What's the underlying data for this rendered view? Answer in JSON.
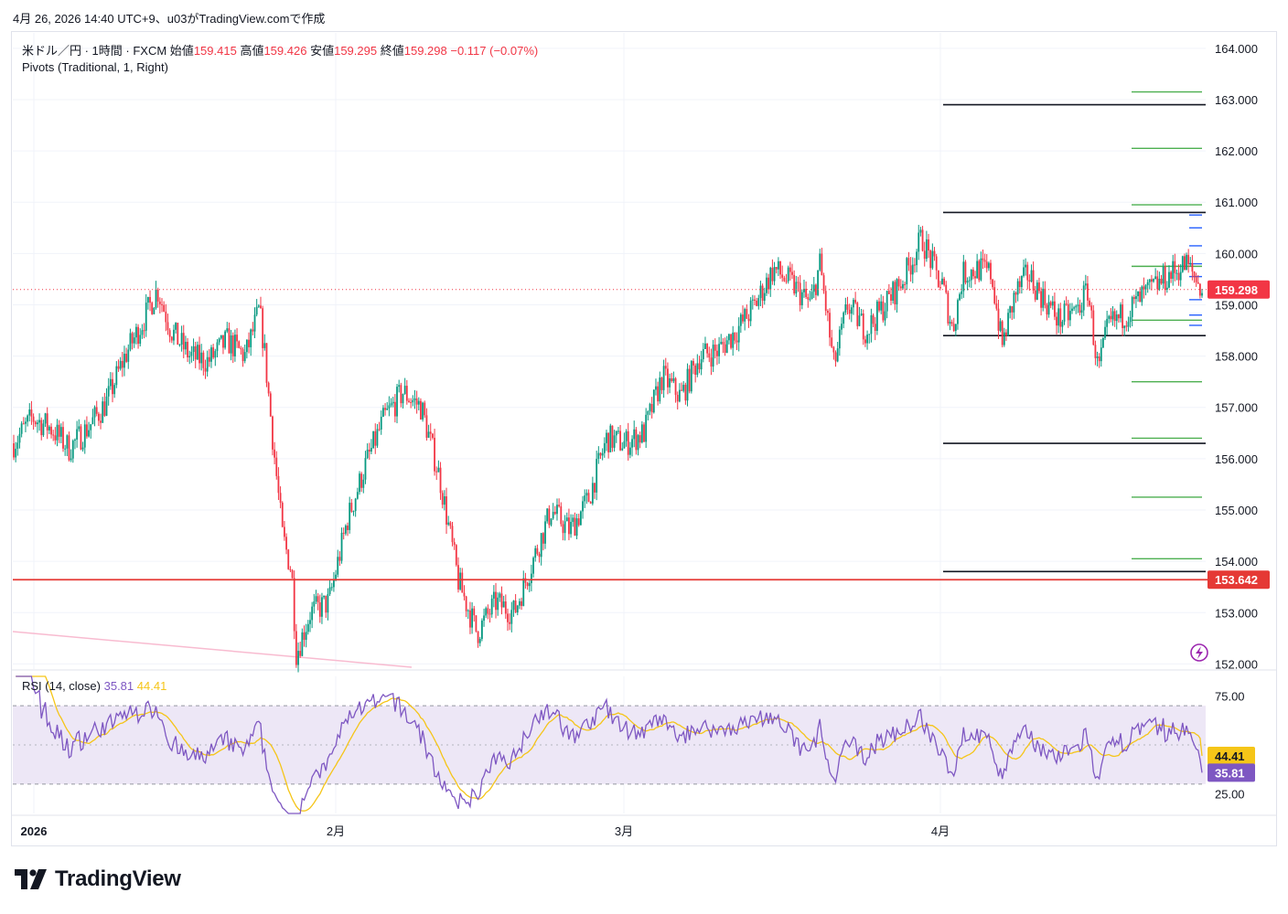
{
  "header": {
    "timestamp_line": "4月 26, 2026 14:40 UTC+9、u03がTradingView.comで作成"
  },
  "legend": {
    "symbol": "米ドル／円 · 1時間 · FXCM",
    "open_label": "始値",
    "open": "159.415",
    "high_label": "高値",
    "high": "159.426",
    "low_label": "安値",
    "low": "159.295",
    "close_label": "終値",
    "close": "159.298",
    "change": "−0.117 (−0.07%)",
    "pivots": "Pivots (Traditional, 1, Right)",
    "rsi_label": "RSI (14, close)",
    "rsi_value": "35.81",
    "rsi_ma_value": "44.41"
  },
  "price_axis": {
    "labels": [
      "164.000",
      "163.000",
      "162.000",
      "161.000",
      "160.000",
      "159.000",
      "158.000",
      "157.000",
      "156.000",
      "155.000",
      "154.000",
      "153.000",
      "152.000"
    ],
    "current_price_badge": "159.298",
    "hline_badge": "153.642"
  },
  "rsi_axis": {
    "labels": [
      "75.00",
      "25.00"
    ],
    "ma_badge": "44.41",
    "rsi_badge": "35.81"
  },
  "time_axis": {
    "labels": [
      "2026",
      "2月",
      "3月",
      "4月"
    ]
  },
  "colors": {
    "up": "#089981",
    "down": "#f23645",
    "hline": "#e53935",
    "pivot_black": "#131722",
    "pivot_green": "#4caf50",
    "rsi": "#7e57c2",
    "rsi_ma": "#f5c518",
    "rsi_band": "#ede7f6"
  },
  "chart_data": {
    "type": "candlestick",
    "symbol": "米ドル／円",
    "timeframe": "1時間",
    "ylim": [
      151.9,
      164.3
    ],
    "anchors": [
      {
        "t": 0.0,
        "p": 156.3
      },
      {
        "t": 0.02,
        "p": 156.8
      },
      {
        "t": 0.04,
        "p": 156.6
      },
      {
        "t": 0.06,
        "p": 156.2
      },
      {
        "t": 0.08,
        "p": 156.6
      },
      {
        "t": 0.1,
        "p": 157.1
      },
      {
        "t": 0.12,
        "p": 158.0
      },
      {
        "t": 0.14,
        "p": 158.7
      },
      {
        "t": 0.155,
        "p": 159.3
      },
      {
        "t": 0.17,
        "p": 158.5
      },
      {
        "t": 0.19,
        "p": 158.0
      },
      {
        "t": 0.21,
        "p": 157.9
      },
      {
        "t": 0.23,
        "p": 158.3
      },
      {
        "t": 0.25,
        "p": 158.0
      },
      {
        "t": 0.265,
        "p": 158.9
      },
      {
        "t": 0.27,
        "p": 158.2
      },
      {
        "t": 0.28,
        "p": 156.3
      },
      {
        "t": 0.29,
        "p": 154.5
      },
      {
        "t": 0.3,
        "p": 153.8
      },
      {
        "t": 0.305,
        "p": 152.2
      },
      {
        "t": 0.32,
        "p": 153.0
      },
      {
        "t": 0.34,
        "p": 153.2
      },
      {
        "t": 0.36,
        "p": 154.8
      },
      {
        "t": 0.38,
        "p": 155.9
      },
      {
        "t": 0.4,
        "p": 156.8
      },
      {
        "t": 0.42,
        "p": 157.3
      },
      {
        "t": 0.44,
        "p": 157.0
      },
      {
        "t": 0.46,
        "p": 155.6
      },
      {
        "t": 0.48,
        "p": 153.6
      },
      {
        "t": 0.5,
        "p": 152.6
      },
      {
        "t": 0.52,
        "p": 153.2
      },
      {
        "t": 0.54,
        "p": 153.0
      },
      {
        "t": 0.56,
        "p": 154.0
      },
      {
        "t": 0.58,
        "p": 155.0
      },
      {
        "t": 0.6,
        "p": 154.6
      },
      {
        "t": 0.62,
        "p": 155.2
      },
      {
        "t": 0.64,
        "p": 156.4
      },
      {
        "t": 0.66,
        "p": 156.3
      },
      {
        "t": 0.68,
        "p": 156.5
      },
      {
        "t": 0.7,
        "p": 157.6
      },
      {
        "t": 0.72,
        "p": 157.2
      },
      {
        "t": 0.74,
        "p": 158.0
      },
      {
        "t": 0.76,
        "p": 158.1
      },
      {
        "t": 0.78,
        "p": 158.5
      },
      {
        "t": 0.8,
        "p": 159.0
      },
      {
        "t": 0.82,
        "p": 159.7
      },
      {
        "t": 0.84,
        "p": 159.4
      },
      {
        "t": 0.86,
        "p": 159.0
      },
      {
        "t": 0.87,
        "p": 159.8
      },
      {
        "t": 0.885,
        "p": 157.8
      },
      {
        "t": 0.9,
        "p": 159.0
      },
      {
        "t": 0.92,
        "p": 158.5
      },
      {
        "t": 0.94,
        "p": 159.0
      },
      {
        "t": 0.96,
        "p": 159.5
      },
      {
        "t": 0.98,
        "p": 160.3
      },
      {
        "t": 1.0,
        "p": 159.4
      }
    ],
    "anchors_april": [
      {
        "t": 0.0,
        "p": 159.4
      },
      {
        "t": 0.04,
        "p": 158.5
      },
      {
        "t": 0.08,
        "p": 159.6
      },
      {
        "t": 0.14,
        "p": 159.7
      },
      {
        "t": 0.19,
        "p": 159.6
      },
      {
        "t": 0.23,
        "p": 158.2
      },
      {
        "t": 0.28,
        "p": 159.2
      },
      {
        "t": 0.33,
        "p": 159.6
      },
      {
        "t": 0.38,
        "p": 159.2
      },
      {
        "t": 0.45,
        "p": 158.7
      },
      {
        "t": 0.52,
        "p": 158.9
      },
      {
        "t": 0.56,
        "p": 159.3
      },
      {
        "t": 0.6,
        "p": 157.7
      },
      {
        "t": 0.64,
        "p": 158.6
      },
      {
        "t": 0.7,
        "p": 158.8
      },
      {
        "t": 0.78,
        "p": 159.2
      },
      {
        "t": 0.88,
        "p": 159.6
      },
      {
        "t": 0.94,
        "p": 159.8
      },
      {
        "t": 1.0,
        "p": 159.3
      }
    ],
    "horizontal_line": 153.642,
    "pivots_black": [
      162.9,
      160.8,
      158.4,
      156.3,
      153.8
    ],
    "pivots_green": [
      163.15,
      162.05,
      160.95,
      159.75,
      158.7,
      157.5,
      156.4,
      155.25,
      154.05
    ],
    "current_price": 159.298,
    "rsi": {
      "period": 14,
      "overbought": 70,
      "oversold": 30,
      "ylim": [
        15,
        85
      ],
      "last": 35.81,
      "ma_last": 44.41
    }
  }
}
